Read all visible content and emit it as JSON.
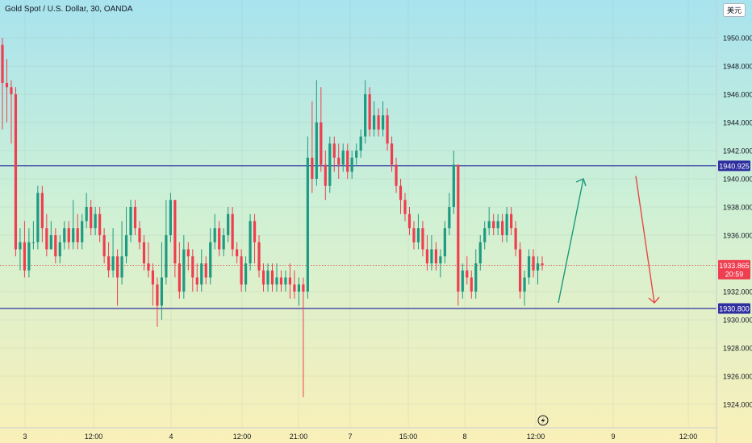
{
  "header": {
    "title": "Gold Spot / U.S. Dollar, 30, OANDA",
    "currency": "美元"
  },
  "chart_data": {
    "type": "candlestick",
    "ylim": [
      1923,
      1951.5
    ],
    "yticks": [
      "1950.000",
      "1948.000",
      "1946.000",
      "1944.000",
      "1942.000",
      "1940.000",
      "1938.000",
      "1936.000",
      "1932.000",
      "1930.000",
      "1928.000",
      "1926.000",
      "1924.000"
    ],
    "xticks": [
      "3",
      "12:00",
      "4",
      "12:00",
      "21:00",
      "7",
      "15:00",
      "8",
      "12:00",
      "9",
      "12:00"
    ],
    "lines": [
      {
        "name": "resistance",
        "value": 1940.925,
        "label": "1940.925"
      },
      {
        "name": "support",
        "value": 1930.8,
        "label": "1930.800"
      }
    ],
    "last_price": {
      "value": 1933.865,
      "label": "1933.865",
      "countdown": "20:59"
    },
    "candles": [
      [
        1949.5,
        1946.8,
        1950.0,
        1943.5
      ],
      [
        1946.8,
        1946.5,
        1948.5,
        1944.0
      ],
      [
        1946.5,
        1946.0,
        1947.0,
        1942.5
      ],
      [
        1946.0,
        1935.0,
        1946.5,
        1934.5
      ],
      [
        1935.0,
        1935.5,
        1936.5,
        1933.5
      ],
      [
        1935.5,
        1933.5,
        1937.0,
        1933.0
      ],
      [
        1933.5,
        1935.5,
        1936.5,
        1933.0
      ],
      [
        1935.5,
        1935.5,
        1937.0,
        1935.0
      ],
      [
        1935.5,
        1939.0,
        1939.5,
        1935.0
      ],
      [
        1939.0,
        1936.5,
        1939.5,
        1935.5
      ],
      [
        1936.5,
        1935.0,
        1937.5,
        1934.5
      ],
      [
        1935.0,
        1936.0,
        1937.0,
        1935.0
      ],
      [
        1936.0,
        1934.5,
        1936.5,
        1934.0
      ],
      [
        1934.5,
        1935.5,
        1936.0,
        1934.0
      ],
      [
        1935.5,
        1936.5,
        1937.0,
        1935.0
      ],
      [
        1936.5,
        1935.5,
        1937.0,
        1935.0
      ],
      [
        1935.5,
        1936.5,
        1938.5,
        1935.0
      ],
      [
        1936.5,
        1935.5,
        1937.5,
        1935.0
      ],
      [
        1935.5,
        1937.0,
        1937.5,
        1935.0
      ],
      [
        1937.0,
        1938.0,
        1939.0,
        1936.5
      ],
      [
        1938.0,
        1936.5,
        1938.5,
        1936.0
      ],
      [
        1936.5,
        1937.5,
        1938.0,
        1936.0
      ],
      [
        1937.5,
        1936.0,
        1938.0,
        1935.5
      ],
      [
        1936.0,
        1934.5,
        1936.5,
        1934.0
      ],
      [
        1934.5,
        1933.5,
        1935.5,
        1933.0
      ],
      [
        1933.5,
        1934.5,
        1936.5,
        1933.0
      ],
      [
        1934.5,
        1933.0,
        1935.0,
        1931.0
      ],
      [
        1933.0,
        1934.5,
        1937.0,
        1932.5
      ],
      [
        1934.5,
        1936.0,
        1938.0,
        1934.0
      ],
      [
        1936.0,
        1938.0,
        1938.5,
        1935.5
      ],
      [
        1938.0,
        1936.5,
        1938.5,
        1936.0
      ],
      [
        1936.5,
        1935.5,
        1937.0,
        1935.0
      ],
      [
        1935.5,
        1934.0,
        1936.0,
        1933.5
      ],
      [
        1934.0,
        1933.5,
        1935.5,
        1933.0
      ],
      [
        1933.5,
        1932.5,
        1934.0,
        1931.0
      ],
      [
        1932.5,
        1931.0,
        1933.0,
        1929.5
      ],
      [
        1931.0,
        1933.0,
        1935.5,
        1930.0
      ],
      [
        1933.0,
        1936.0,
        1938.5,
        1932.5
      ],
      [
        1936.0,
        1938.5,
        1939.0,
        1935.5
      ],
      [
        1938.5,
        1934.0,
        1938.5,
        1933.0
      ],
      [
        1934.0,
        1932.0,
        1935.5,
        1931.5
      ],
      [
        1932.0,
        1935.0,
        1936.0,
        1931.5
      ],
      [
        1935.0,
        1934.5,
        1935.5,
        1933.5
      ],
      [
        1934.5,
        1933.0,
        1935.0,
        1932.0
      ],
      [
        1933.0,
        1932.5,
        1934.0,
        1932.0
      ],
      [
        1932.5,
        1934.0,
        1935.0,
        1932.0
      ],
      [
        1934.0,
        1933.0,
        1934.5,
        1932.5
      ],
      [
        1933.0,
        1935.5,
        1936.5,
        1932.5
      ],
      [
        1935.5,
        1936.5,
        1937.5,
        1935.0
      ],
      [
        1936.5,
        1935.0,
        1937.0,
        1934.5
      ],
      [
        1935.0,
        1936.0,
        1936.5,
        1934.5
      ],
      [
        1936.0,
        1937.5,
        1938.0,
        1935.5
      ],
      [
        1937.5,
        1935.0,
        1938.0,
        1934.5
      ],
      [
        1935.0,
        1934.5,
        1935.5,
        1934.0
      ],
      [
        1934.5,
        1932.5,
        1935.0,
        1932.0
      ],
      [
        1932.5,
        1934.0,
        1934.5,
        1932.0
      ],
      [
        1934.0,
        1937.0,
        1937.5,
        1933.5
      ],
      [
        1937.0,
        1935.5,
        1937.5,
        1934.0
      ],
      [
        1935.5,
        1933.5,
        1936.0,
        1933.0
      ],
      [
        1933.5,
        1932.5,
        1934.0,
        1932.0
      ],
      [
        1932.5,
        1933.5,
        1934.0,
        1932.0
      ],
      [
        1933.5,
        1932.5,
        1934.0,
        1932.0
      ],
      [
        1932.5,
        1933.0,
        1934.0,
        1932.0
      ],
      [
        1933.0,
        1932.5,
        1933.5,
        1932.0
      ],
      [
        1932.5,
        1933.0,
        1933.5,
        1932.0
      ],
      [
        1933.0,
        1932.5,
        1934.0,
        1931.5
      ],
      [
        1932.5,
        1932.0,
        1933.5,
        1931.5
      ],
      [
        1932.0,
        1932.5,
        1933.0,
        1931.0
      ],
      [
        1932.5,
        1932.0,
        1933.0,
        1924.5
      ],
      [
        1932.0,
        1941.5,
        1943.0,
        1931.5
      ],
      [
        1941.5,
        1940.0,
        1945.5,
        1939.0
      ],
      [
        1940.0,
        1944.0,
        1947.0,
        1939.5
      ],
      [
        1944.0,
        1941.0,
        1946.5,
        1940.5
      ],
      [
        1941.0,
        1939.5,
        1942.0,
        1938.5
      ],
      [
        1939.5,
        1942.5,
        1943.0,
        1939.0
      ],
      [
        1942.5,
        1941.5,
        1943.0,
        1940.5
      ],
      [
        1941.5,
        1941.0,
        1942.5,
        1940.0
      ],
      [
        1941.0,
        1942.0,
        1942.5,
        1940.5
      ],
      [
        1942.0,
        1940.5,
        1942.5,
        1940.0
      ],
      [
        1940.5,
        1941.5,
        1942.0,
        1940.0
      ],
      [
        1941.5,
        1942.0,
        1942.5,
        1941.0
      ],
      [
        1942.0,
        1943.0,
        1943.5,
        1941.5
      ],
      [
        1943.0,
        1946.0,
        1947.0,
        1942.5
      ],
      [
        1946.0,
        1943.5,
        1946.5,
        1943.0
      ],
      [
        1943.5,
        1944.5,
        1945.5,
        1943.0
      ],
      [
        1944.5,
        1943.5,
        1945.0,
        1943.0
      ],
      [
        1943.5,
        1944.5,
        1945.5,
        1943.0
      ],
      [
        1944.5,
        1942.5,
        1945.0,
        1942.0
      ],
      [
        1942.5,
        1941.0,
        1943.0,
        1940.5
      ],
      [
        1941.0,
        1939.5,
        1941.5,
        1939.0
      ],
      [
        1939.5,
        1938.5,
        1940.0,
        1937.5
      ],
      [
        1938.5,
        1937.5,
        1939.0,
        1937.0
      ],
      [
        1937.5,
        1936.5,
        1938.0,
        1936.0
      ],
      [
        1936.5,
        1935.5,
        1937.0,
        1935.0
      ],
      [
        1935.5,
        1936.5,
        1937.5,
        1935.0
      ],
      [
        1936.5,
        1935.0,
        1937.0,
        1934.5
      ],
      [
        1935.0,
        1934.0,
        1936.0,
        1933.5
      ],
      [
        1934.0,
        1935.0,
        1936.0,
        1933.5
      ],
      [
        1935.0,
        1934.0,
        1935.5,
        1933.5
      ],
      [
        1934.0,
        1934.5,
        1935.0,
        1933.0
      ],
      [
        1934.5,
        1936.5,
        1937.0,
        1934.0
      ],
      [
        1936.5,
        1938.0,
        1939.0,
        1936.0
      ],
      [
        1938.0,
        1941.0,
        1942.0,
        1937.5
      ],
      [
        1941.0,
        1932.0,
        1941.0,
        1931.0
      ],
      [
        1932.0,
        1933.5,
        1934.0,
        1931.5
      ],
      [
        1933.5,
        1933.0,
        1934.5,
        1932.5
      ],
      [
        1933.0,
        1932.0,
        1933.5,
        1931.5
      ],
      [
        1932.0,
        1934.0,
        1935.0,
        1931.5
      ],
      [
        1934.0,
        1935.5,
        1936.0,
        1933.5
      ],
      [
        1935.5,
        1936.5,
        1937.0,
        1935.0
      ],
      [
        1936.5,
        1937.0,
        1938.0,
        1936.0
      ],
      [
        1937.0,
        1936.5,
        1937.5,
        1936.0
      ],
      [
        1936.5,
        1937.0,
        1937.5,
        1936.0
      ],
      [
        1937.0,
        1936.0,
        1937.5,
        1935.5
      ],
      [
        1936.0,
        1937.5,
        1938.0,
        1935.5
      ],
      [
        1937.5,
        1936.5,
        1938.0,
        1936.0
      ],
      [
        1936.5,
        1935.0,
        1937.0,
        1934.5
      ],
      [
        1935.0,
        1932.0,
        1935.5,
        1931.5
      ],
      [
        1932.0,
        1933.0,
        1933.5,
        1931.0
      ],
      [
        1933.0,
        1934.5,
        1935.0,
        1932.5
      ],
      [
        1934.5,
        1933.5,
        1935.0,
        1933.0
      ],
      [
        1933.5,
        1934.0,
        1934.5,
        1932.5
      ],
      [
        1934.0,
        1933.865,
        1934.5,
        1933.5
      ]
    ],
    "arrows": [
      {
        "name": "up-arrow",
        "from": [
          1931.2
        ],
        "to": [
          1940.0
        ]
      },
      {
        "name": "down-arrow",
        "from": [
          1940.2
        ],
        "to": [
          1931.2
        ]
      }
    ]
  }
}
